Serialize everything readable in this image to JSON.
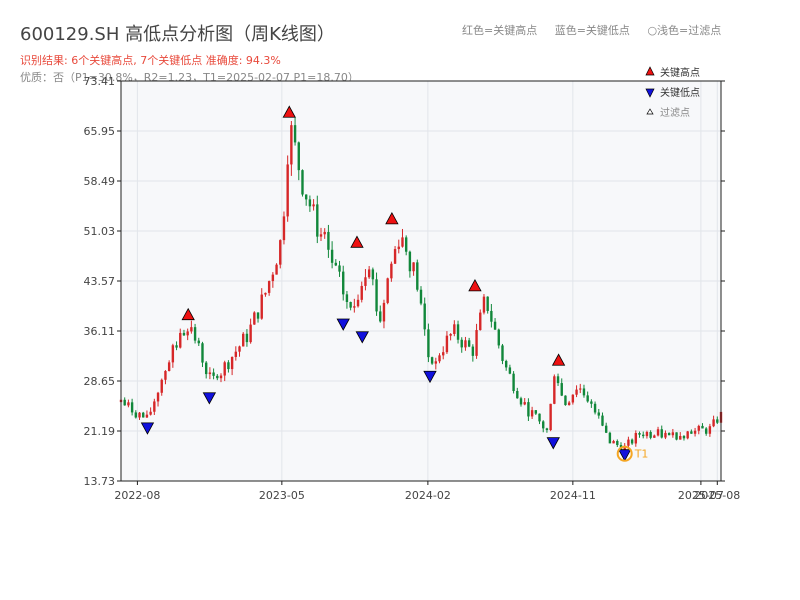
{
  "header": {
    "title": "600129.SH 高低点分析图（周K线图）",
    "result": "识别结果: 6个关键高点, 7个关键低点  准确度: 94.3%",
    "quality": "优质：否（P1=30.8%，R2=1.23，T1=2025-02-07 P1=18.70）",
    "legend_text": [
      "红色=关键高点",
      "蓝色=关键低点",
      "○浅色=过滤点"
    ]
  },
  "chart_data": {
    "type": "candlestick",
    "y_ticks": [
      13.73,
      21.19,
      28.65,
      36.11,
      43.57,
      51.03,
      58.49,
      65.95,
      73.41
    ],
    "ylim": [
      13.73,
      73.41
    ],
    "x_range": [
      "2022-07-01",
      "2025-08-08"
    ],
    "x_ticks": [
      {
        "label": "2022-08",
        "date": "2022-08-01"
      },
      {
        "label": "2023-05",
        "date": "2023-05-01"
      },
      {
        "label": "2024-02",
        "date": "2024-02-01"
      },
      {
        "label": "2024-11",
        "date": "2024-11-01"
      },
      {
        "label": "2025-07",
        "date": "2025-07-01"
      },
      {
        "label": "2025-08",
        "date": "2025-08-01"
      }
    ],
    "legend": [
      {
        "label": "关键高点",
        "color": "#ee1111",
        "marker": "up"
      },
      {
        "label": "关键低点",
        "color": "#1111dd",
        "marker": "down"
      },
      {
        "label": "过滤点",
        "color": "#ffffff",
        "marker": "up-small"
      }
    ],
    "anchors": [
      [
        "2022-07-01",
        25.5
      ],
      [
        "2022-08-20",
        22.8
      ],
      [
        "2022-09-25",
        31
      ],
      [
        "2022-11-05",
        37.5
      ],
      [
        "2022-12-20",
        28.3
      ],
      [
        "2023-02-25",
        35.5
      ],
      [
        "2023-04-01",
        42
      ],
      [
        "2023-05-01",
        50
      ],
      [
        "2023-05-15",
        67
      ],
      [
        "2023-06-10",
        58
      ],
      [
        "2023-07-10",
        51
      ],
      [
        "2023-08-20",
        43
      ],
      [
        "2023-09-10",
        38.5
      ],
      [
        "2023-10-12",
        47.5
      ],
      [
        "2023-11-01",
        37
      ],
      [
        "2023-11-20",
        45
      ],
      [
        "2023-12-10",
        51
      ],
      [
        "2024-01-10",
        44
      ],
      [
        "2024-02-05",
        31
      ],
      [
        "2024-03-20",
        36
      ],
      [
        "2024-04-25",
        33
      ],
      [
        "2024-05-20",
        41
      ],
      [
        "2024-06-25",
        31
      ],
      [
        "2024-08-01",
        25
      ],
      [
        "2024-09-15",
        21
      ],
      [
        "2024-09-28",
        31
      ],
      [
        "2024-10-15",
        25
      ],
      [
        "2024-11-10",
        28
      ],
      [
        "2024-12-20",
        24
      ],
      [
        "2025-01-10",
        19.5
      ],
      [
        "2025-02-07",
        18.7
      ],
      [
        "2025-03-10",
        21
      ],
      [
        "2025-05-01",
        20.5
      ],
      [
        "2025-07-20",
        21.5
      ],
      [
        "2025-08-05",
        23.5
      ]
    ],
    "key_highs": [
      {
        "date": "2022-11-05",
        "value": 37.5
      },
      {
        "date": "2023-05-15",
        "value": 67.7
      },
      {
        "date": "2023-09-20",
        "value": 48.3
      },
      {
        "date": "2023-11-25",
        "value": 51.8
      },
      {
        "date": "2024-04-30",
        "value": 41.8
      },
      {
        "date": "2024-10-05",
        "value": 30.7
      }
    ],
    "key_lows": [
      {
        "date": "2022-08-20",
        "value": 22.7
      },
      {
        "date": "2022-12-15",
        "value": 27.2
      },
      {
        "date": "2023-08-25",
        "value": 38.2
      },
      {
        "date": "2023-09-30",
        "value": 36.3
      },
      {
        "date": "2024-02-05",
        "value": 30.4
      },
      {
        "date": "2024-09-25",
        "value": 20.5
      },
      {
        "date": "2025-02-07",
        "value": 18.7
      }
    ],
    "filtered_points": [
      {
        "date": "2025-02-07",
        "value": 18.7,
        "label": "T1"
      }
    ]
  },
  "colors": {
    "up_candle": "#d62728",
    "down_candle": "#11873a",
    "plot_bg": "#f7f8fa",
    "grid": "#e2e5ea",
    "axis": "#1f1f1f",
    "tick_text": "#444444",
    "filtered_marker": "#f5a623"
  }
}
